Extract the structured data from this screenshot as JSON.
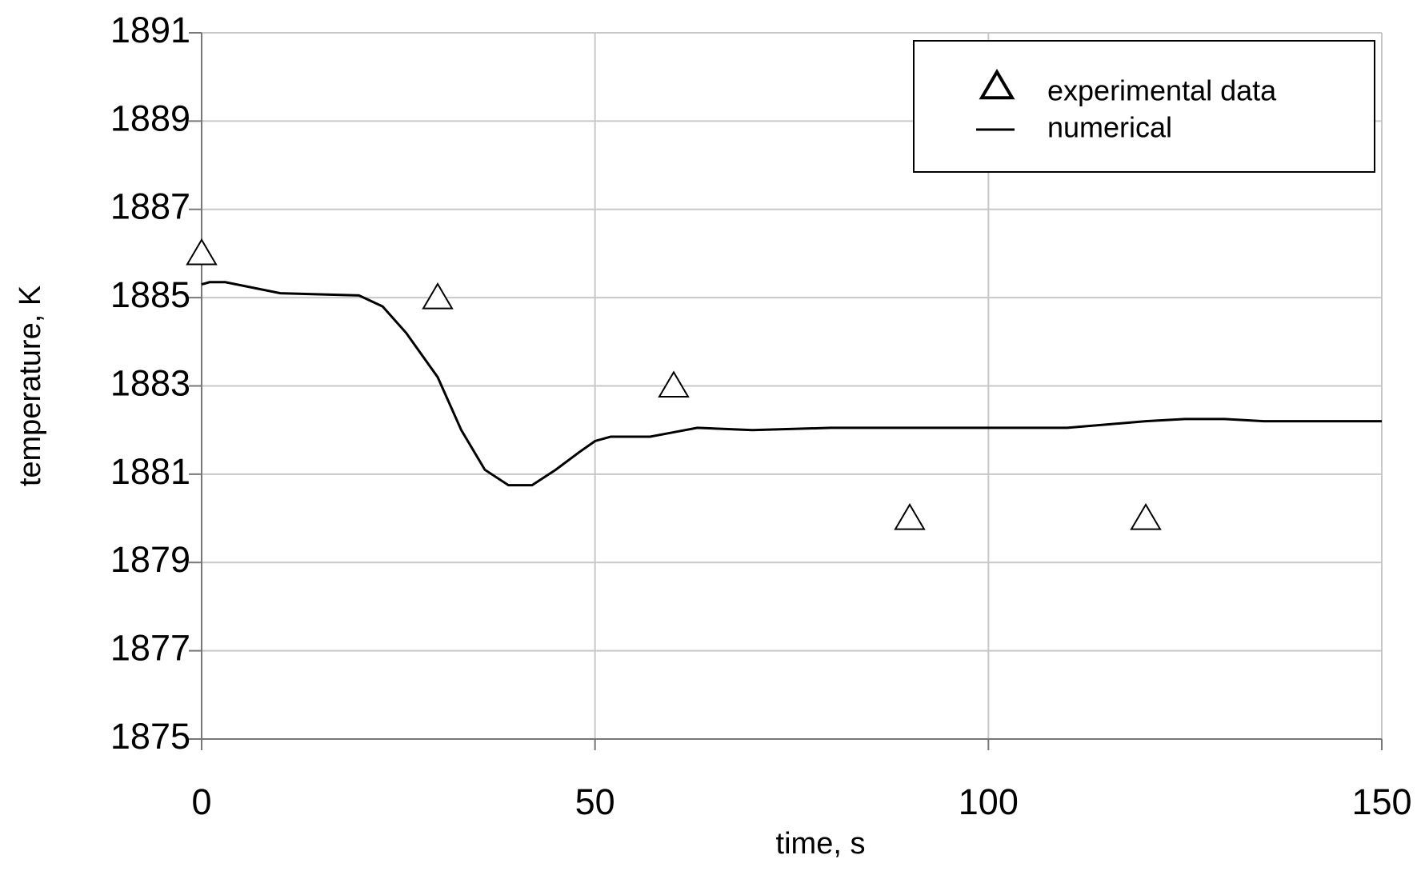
{
  "chart_data": {
    "type": "line",
    "x_label": "time, s",
    "y_label": "temperature, K",
    "xlim": [
      0,
      150
    ],
    "xticks": [
      0,
      50,
      100,
      150
    ],
    "ylim": [
      1875,
      1891
    ],
    "yticks": [
      1875,
      1877,
      1879,
      1881,
      1883,
      1885,
      1887,
      1889,
      1891
    ],
    "grid": true,
    "legend": "upper right",
    "series": [
      {
        "name": "experimental data",
        "mode": "marker",
        "marker": "triangle",
        "color": "#000000",
        "x": [
          0,
          30,
          60,
          90,
          120
        ],
        "values": [
          1886,
          1885,
          1883,
          1880,
          1880
        ]
      },
      {
        "name": "numerical",
        "mode": "line",
        "color": "#000000",
        "x": [
          0,
          1,
          3,
          10,
          20,
          23,
          26,
          30,
          33,
          36,
          39,
          42,
          45,
          48,
          50,
          52,
          57,
          60,
          63,
          70,
          80,
          90,
          100,
          110,
          120,
          125,
          130,
          135,
          140,
          150
        ],
        "values": [
          1885.3,
          1885.35,
          1885.35,
          1885.1,
          1885.05,
          1884.8,
          1884.2,
          1883.2,
          1882.0,
          1881.1,
          1880.75,
          1880.75,
          1881.1,
          1881.5,
          1881.75,
          1881.85,
          1881.85,
          1881.95,
          1882.05,
          1882.0,
          1882.05,
          1882.05,
          1882.05,
          1882.05,
          1882.2,
          1882.25,
          1882.25,
          1882.2,
          1882.2,
          1882.2
        ]
      }
    ]
  }
}
